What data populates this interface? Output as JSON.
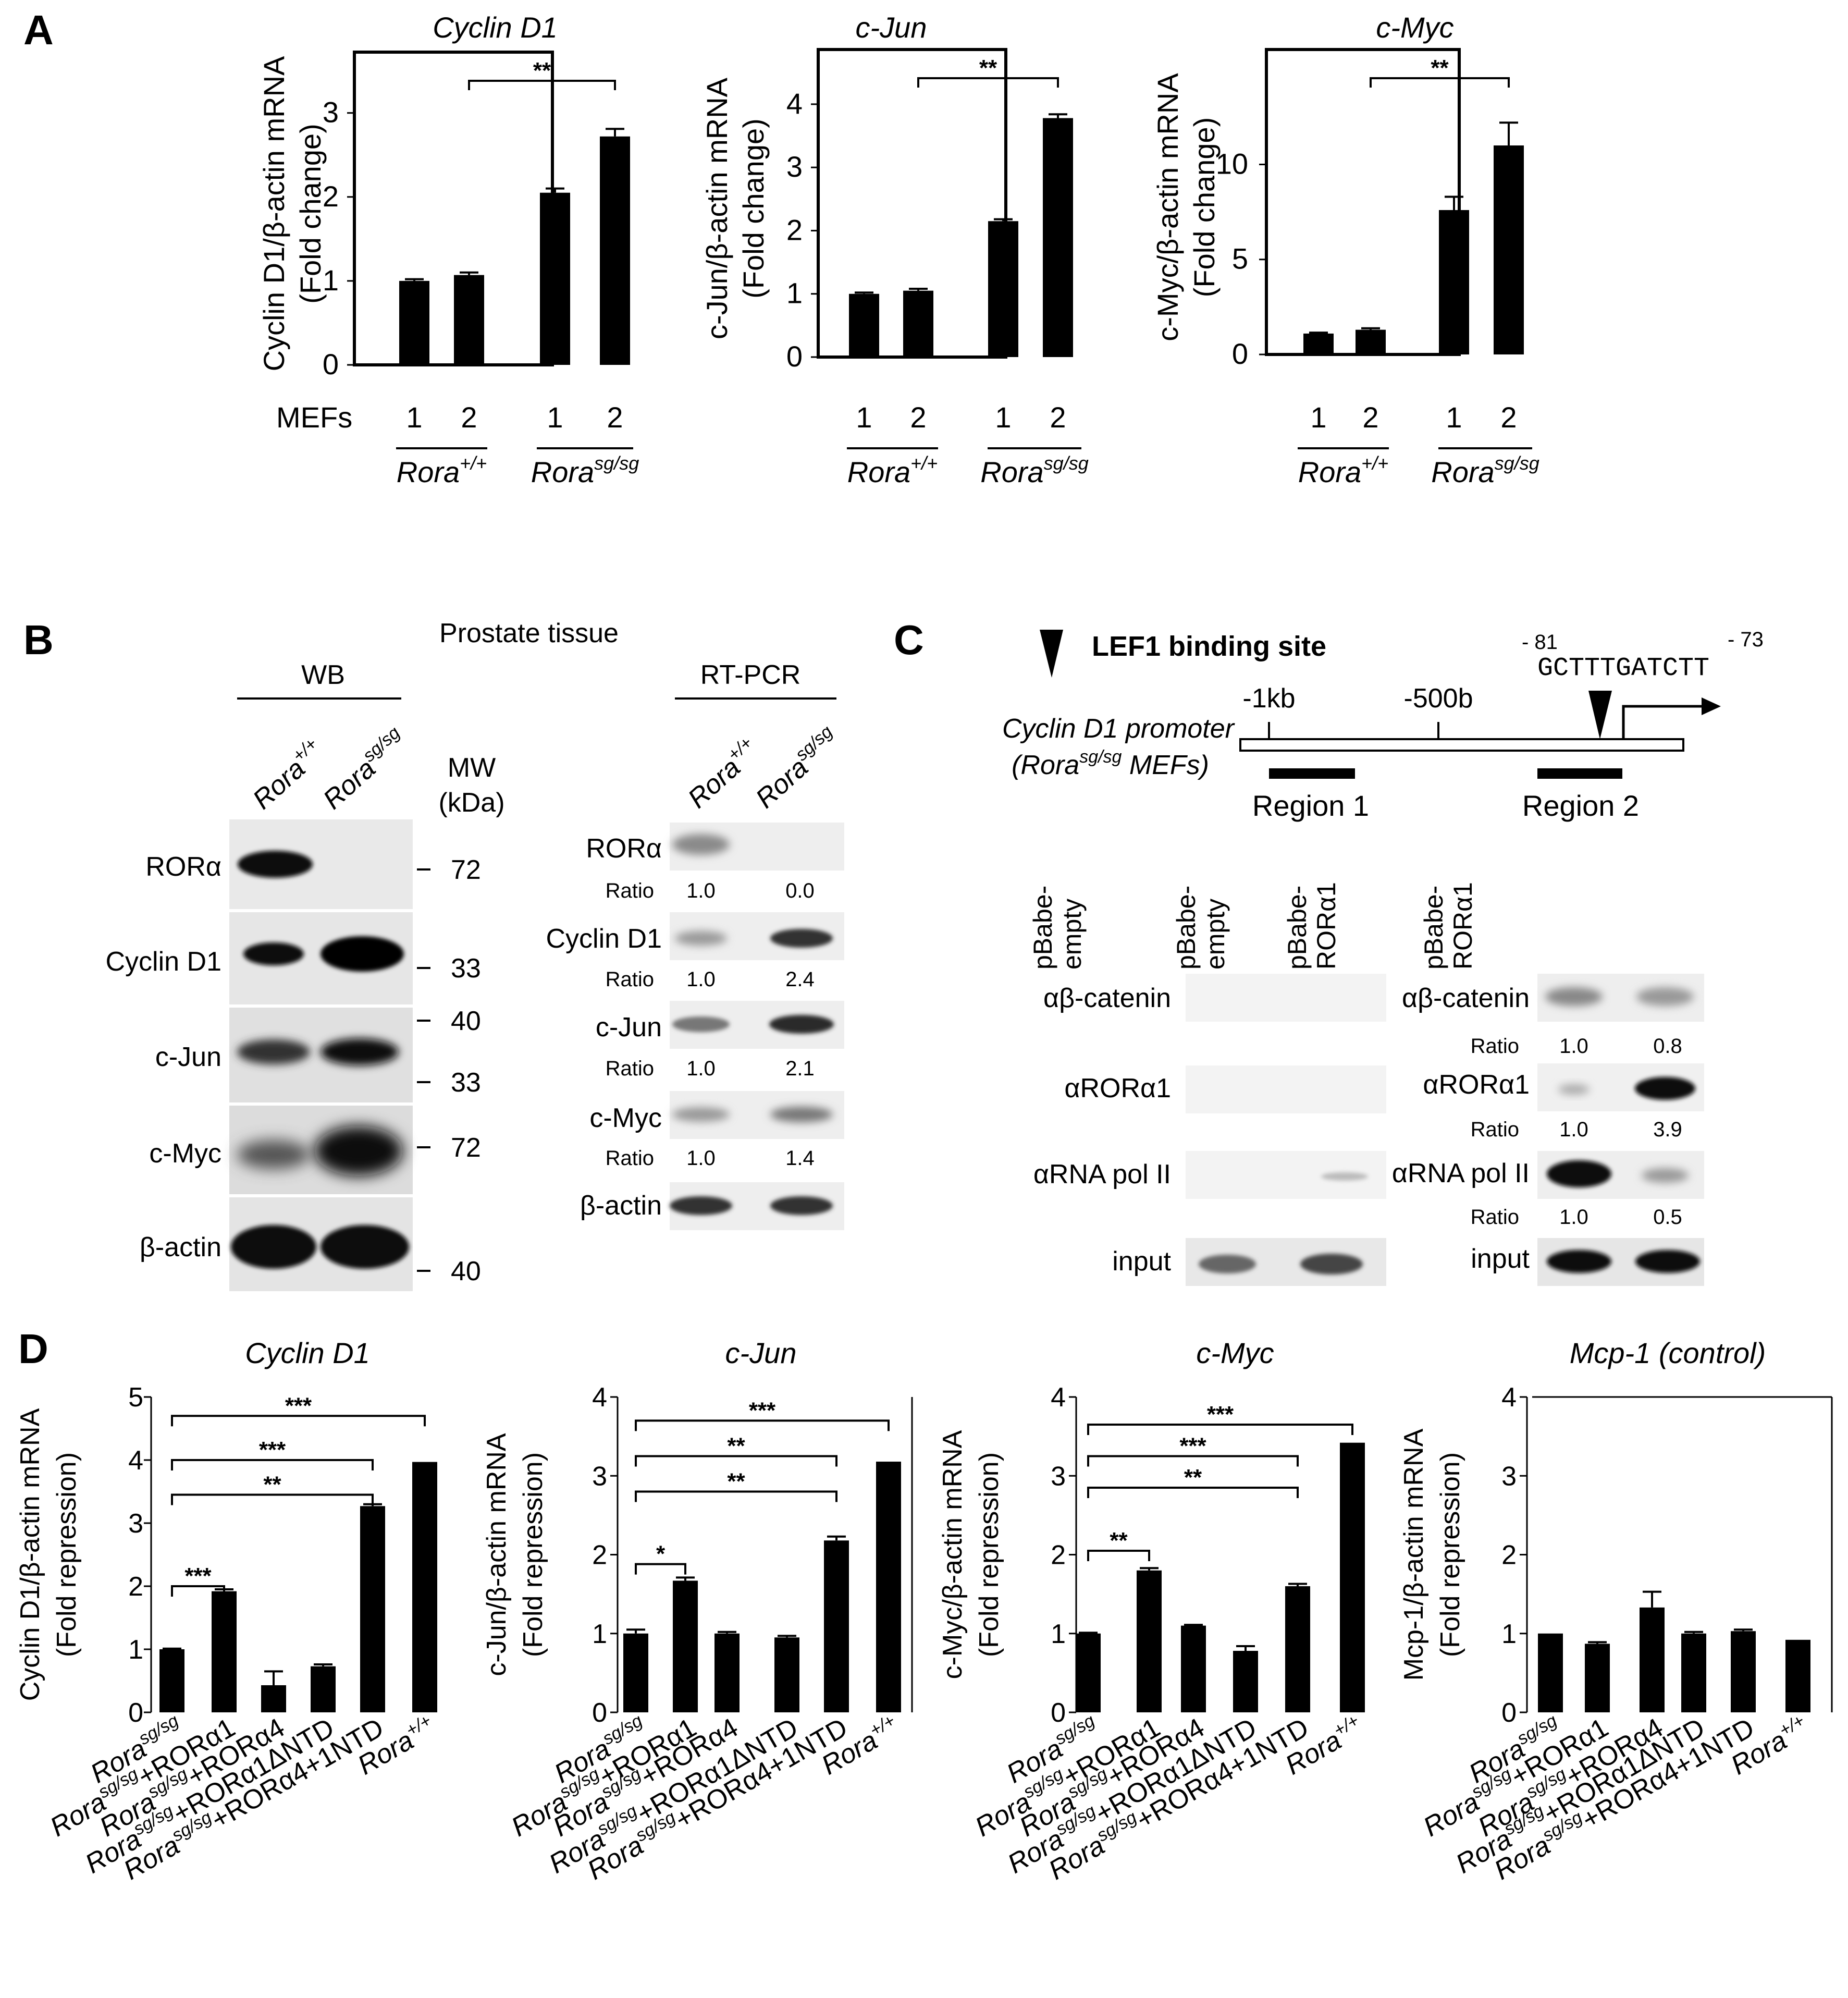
{
  "panels": {
    "A": "A",
    "B": "B",
    "C": "C",
    "D": "D"
  },
  "chart_data": [
    {
      "id": "A1",
      "type": "bar",
      "title": "Cyclin D1",
      "ylabel_1": "Cyclin D1/β-actin mRNA",
      "ylabel_2": "(Fold change)",
      "ylim": [
        0,
        3.6
      ],
      "yticks": [
        0,
        1,
        2,
        3
      ],
      "categories": [
        "1",
        "2",
        "1",
        "2"
      ],
      "values": [
        1.0,
        1.07,
        2.05,
        2.72
      ],
      "errors": [
        0.02,
        0.03,
        0.05,
        0.09
      ],
      "row_label": "MEFs",
      "groups": [
        {
          "label": "Rora",
          "sup": "+/+"
        },
        {
          "label": "Rora",
          "sup": "sg/sg"
        }
      ],
      "brackets": [
        {
          "from": 1,
          "to": 3,
          "label": "**"
        }
      ]
    },
    {
      "id": "A2",
      "type": "bar",
      "title": "c-Jun",
      "ylabel_1": "c-Jun/β-actin mRNA",
      "ylabel_2": "(Fold change)",
      "ylim": [
        0,
        4.7
      ],
      "yticks": [
        0,
        1,
        2,
        3,
        4
      ],
      "categories": [
        "1",
        "2",
        "1",
        "2"
      ],
      "values": [
        1.0,
        1.05,
        2.15,
        3.78
      ],
      "errors": [
        0.02,
        0.03,
        0.03,
        0.06
      ],
      "groups": [
        {
          "label": "Rora",
          "sup": "+/+"
        },
        {
          "label": "Rora",
          "sup": "sg/sg"
        }
      ],
      "brackets": [
        {
          "from": 1,
          "to": 3,
          "label": "**"
        }
      ]
    },
    {
      "id": "A3",
      "type": "bar",
      "title": "c-Myc",
      "ylabel_1": "c-Myc/β-actin mRNA",
      "ylabel_2": "(Fold change)",
      "ylim": [
        0,
        15.5
      ],
      "yticks": [
        0,
        5,
        10
      ],
      "categories": [
        "1",
        "2",
        "1",
        "2"
      ],
      "values": [
        1.1,
        1.3,
        7.6,
        11.0
      ],
      "errors": [
        0.05,
        0.08,
        0.7,
        1.2
      ],
      "groups": [
        {
          "label": "Rora",
          "sup": "+/+"
        },
        {
          "label": "Rora",
          "sup": "sg/sg"
        }
      ],
      "brackets": [
        {
          "from": 1,
          "to": 3,
          "label": "**"
        }
      ]
    },
    {
      "id": "D1",
      "type": "bar",
      "title": "Cyclin D1",
      "ylabel_1": "Cyclin D1/β-actin mRNA",
      "ylabel_2": "(Fold repression)",
      "ylim": [
        0,
        5
      ],
      "yticks": [
        0,
        1,
        2,
        3,
        4,
        5
      ],
      "values": [
        1.0,
        1.92,
        0.43,
        0.73,
        3.27,
        3.97
      ],
      "errors": [
        0.01,
        0.03,
        0.22,
        0.03,
        0.03,
        0.0
      ],
      "brackets": [
        {
          "from": 0,
          "to": 1,
          "label": "***",
          "level": 2.0
        },
        {
          "from": 0,
          "to": 4,
          "label": "**",
          "level": 3.45
        },
        {
          "from": 0,
          "to": 4,
          "label": "***",
          "level": 4.0
        },
        {
          "from": 0,
          "to": 5,
          "label": "***",
          "level": 4.7
        }
      ]
    },
    {
      "id": "D2",
      "type": "bar",
      "title": "c-Jun",
      "ylabel_1": "c-Jun/β-actin mRNA",
      "ylabel_2": "(Fold repression)",
      "ylim": [
        0,
        4
      ],
      "yticks": [
        0,
        1,
        2,
        3,
        4
      ],
      "values": [
        1.0,
        1.67,
        1.0,
        0.95,
        2.18,
        3.18
      ],
      "errors": [
        0.05,
        0.04,
        0.02,
        0.02,
        0.05,
        0.0
      ],
      "brackets": [
        {
          "from": 0,
          "to": 1,
          "label": "*",
          "level": 1.88
        },
        {
          "from": 0,
          "to": 4,
          "label": "**",
          "level": 2.8
        },
        {
          "from": 0,
          "to": 4,
          "label": "**",
          "level": 3.25
        },
        {
          "from": 0,
          "to": 5,
          "label": "***",
          "level": 3.7
        }
      ]
    },
    {
      "id": "D3",
      "type": "bar",
      "title": "c-Myc",
      "ylabel_1": "c-Myc/β-actin mRNA",
      "ylabel_2": "(Fold repression)",
      "ylim": [
        0,
        4
      ],
      "yticks": [
        0,
        1,
        2,
        3,
        4
      ],
      "values": [
        1.0,
        1.8,
        1.1,
        0.78,
        1.6,
        3.42
      ],
      "errors": [
        0.01,
        0.03,
        0.01,
        0.06,
        0.03,
        0.0
      ],
      "brackets": [
        {
          "from": 0,
          "to": 1,
          "label": "**",
          "level": 2.05
        },
        {
          "from": 0,
          "to": 4,
          "label": "**",
          "level": 2.85
        },
        {
          "from": 0,
          "to": 4,
          "label": "***",
          "level": 3.25
        },
        {
          "from": 0,
          "to": 5,
          "label": "***",
          "level": 3.65
        }
      ]
    },
    {
      "id": "D4",
      "type": "bar",
      "title": "Mcp-1 (control)",
      "ylabel_1": "Mcp-1/β-actin mRNA",
      "ylabel_2": "(Fold repression)",
      "ylim": [
        0,
        4
      ],
      "yticks": [
        0,
        1,
        2,
        3,
        4
      ],
      "values": [
        1.0,
        0.87,
        1.33,
        1.0,
        1.03,
        0.92
      ],
      "errors": [
        0.0,
        0.02,
        0.2,
        0.02,
        0.02,
        0.0
      ],
      "brackets": []
    }
  ],
  "d_xlabels": [
    {
      "base": "Rora",
      "sup": "sg/sg",
      "rest": ""
    },
    {
      "base": "Rora",
      "sup": "sg/sg",
      "rest": "+RORα1"
    },
    {
      "base": "Rora",
      "sup": "sg/sg",
      "rest": "+RORα4"
    },
    {
      "base": "Rora",
      "sup": "sg/sg",
      "rest": "+RORα1ΔNTD"
    },
    {
      "base": "Rora",
      "sup": "sg/sg",
      "rest": "+RORα4+1NTD"
    },
    {
      "base": "Rora",
      "sup": "+/+",
      "rest": ""
    }
  ],
  "panel_b": {
    "title": "Prostate tissue",
    "wb_header": "WB",
    "rtpcr_header": "RT-PCR",
    "mw_header_1": "MW",
    "mw_header_2": "(kDa)",
    "lanes": [
      {
        "base": "Rora",
        "sup": "+/+"
      },
      {
        "base": "Rora",
        "sup": "sg/sg"
      }
    ],
    "wb_rows": [
      "RORα",
      "Cyclin D1",
      "c-Jun",
      "c-Myc",
      "β-actin"
    ],
    "mw_marks": [
      "72",
      "33",
      "40",
      "33",
      "72",
      "40"
    ],
    "rt_rows": [
      "RORα",
      "Cyclin D1",
      "c-Jun",
      "c-Myc",
      "β-actin"
    ],
    "ratio_label": "Ratio",
    "ratios": [
      [
        "1.0",
        "0.0"
      ],
      [
        "1.0",
        "2.4"
      ],
      [
        "1.0",
        "2.1"
      ],
      [
        "1.0",
        "1.4"
      ]
    ]
  },
  "panel_c": {
    "legend": "LEF1 binding site",
    "promoter_1": "Cyclin D1 promoter",
    "promoter_2a": "(Rora",
    "promoter_2sup": "sg/sg",
    "promoter_2b": " MEFs)",
    "ticks": [
      "-1kb",
      "-500b"
    ],
    "pos_left": "- 81",
    "pos_right": "- 73",
    "sequence": "GCTTTGATCTT",
    "regions": [
      "Region 1",
      "Region 2"
    ],
    "lane_labels_1": [
      "pBabe-",
      "empty"
    ],
    "lane_labels_2": [
      "pBabe-",
      "RORα1"
    ],
    "rows": [
      "αβ-catenin",
      "αRORα1",
      "αRNA pol II",
      "input"
    ],
    "ratio_label": "Ratio",
    "ratios": [
      [
        "1.0",
        "0.8"
      ],
      [
        "1.0",
        "3.9"
      ],
      [
        "1.0",
        "0.5"
      ]
    ]
  }
}
